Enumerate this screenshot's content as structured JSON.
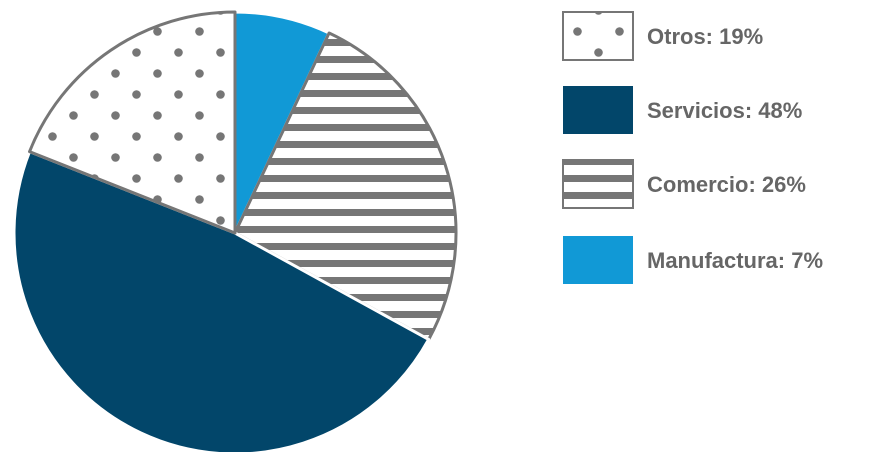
{
  "chart_data": {
    "type": "pie",
    "slices": [
      {
        "label": "Manufactura",
        "value": 7,
        "legend_text": "Manufactura: 7%",
        "color": "#1199d6",
        "pattern": "solid"
      },
      {
        "label": "Comercio",
        "value": 26,
        "legend_text": "Comercio: 26%",
        "color": "#767676",
        "pattern": "horizontal-stripes"
      },
      {
        "label": "Servicios",
        "value": 48,
        "legend_text": "Servicios: 48%",
        "color": "#02466a",
        "pattern": "solid"
      },
      {
        "label": "Otros",
        "value": 19,
        "legend_text": "Otros: 19%",
        "color": "#767676",
        "pattern": "dots"
      }
    ],
    "legend_order": [
      "Otros",
      "Servicios",
      "Comercio",
      "Manufactura"
    ],
    "legend_position": "right"
  }
}
